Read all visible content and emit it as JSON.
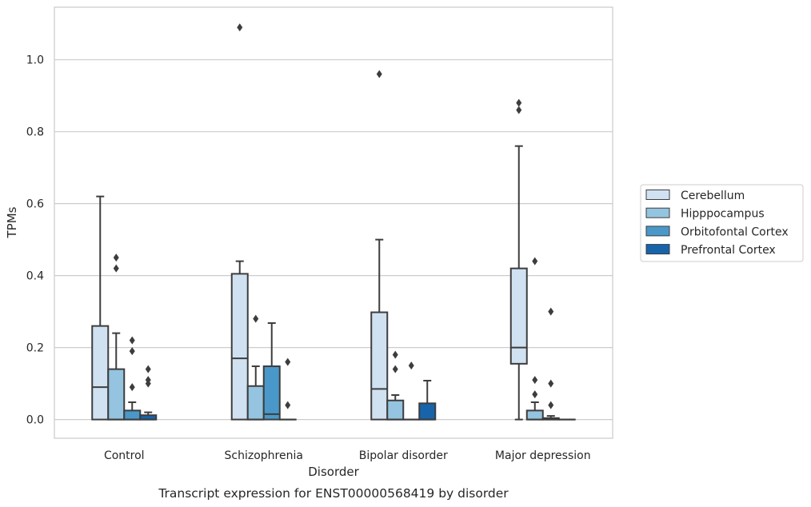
{
  "chart_data": {
    "type": "boxplot",
    "title": "",
    "caption": "Transcript expression for ENST00000568419 by disorder",
    "xlabel": "Disorder",
    "ylabel": "TPMs",
    "ylim": [
      -0.052,
      1.146
    ],
    "yticks": [
      0.0,
      0.2,
      0.4,
      0.6,
      0.8,
      1.0
    ],
    "ytick_labels": [
      "0.0",
      "0.2",
      "0.4",
      "0.6",
      "0.8",
      "1.0"
    ],
    "grid": "horizontal",
    "legend_position": "right",
    "categories": [
      "Control",
      "Schizophrenia",
      "Bipolar disorder",
      "Major depression"
    ],
    "series": [
      {
        "name": "Cerebellum",
        "color": "#d0e1f2",
        "boxes": [
          {
            "q1": 0.0,
            "median": 0.09,
            "q3": 0.26,
            "whisker_low": 0.0,
            "whisker_high": 0.62,
            "outliers": []
          },
          {
            "q1": 0.0,
            "median": 0.17,
            "q3": 0.405,
            "whisker_low": 0.0,
            "whisker_high": 0.44,
            "outliers": [
              1.09
            ]
          },
          {
            "q1": 0.0,
            "median": 0.085,
            "q3": 0.298,
            "whisker_low": 0.0,
            "whisker_high": 0.5,
            "outliers": [
              0.96
            ]
          },
          {
            "q1": 0.155,
            "median": 0.2,
            "q3": 0.42,
            "whisker_low": 0.0,
            "whisker_high": 0.76,
            "outliers": [
              0.86,
              0.88
            ]
          }
        ]
      },
      {
        "name": "Hipppocampus",
        "color": "#94c4df",
        "boxes": [
          {
            "q1": 0.0,
            "median": 0.0,
            "q3": 0.14,
            "whisker_low": 0.0,
            "whisker_high": 0.24,
            "outliers": [
              0.42,
              0.45
            ]
          },
          {
            "q1": 0.0,
            "median": 0.0,
            "q3": 0.093,
            "whisker_low": 0.0,
            "whisker_high": 0.148,
            "outliers": [
              0.28
            ]
          },
          {
            "q1": 0.0,
            "median": 0.0,
            "q3": 0.053,
            "whisker_low": 0.0,
            "whisker_high": 0.068,
            "outliers": [
              0.14,
              0.18
            ]
          },
          {
            "q1": 0.0,
            "median": 0.0,
            "q3": 0.025,
            "whisker_low": 0.0,
            "whisker_high": 0.048,
            "outliers": [
              0.07,
              0.11,
              0.44
            ]
          }
        ]
      },
      {
        "name": "Orbitofontal Cortex",
        "color": "#4a98c9",
        "boxes": [
          {
            "q1": 0.0,
            "median": 0.0,
            "q3": 0.025,
            "whisker_low": 0.0,
            "whisker_high": 0.048,
            "outliers": [
              0.09,
              0.19,
              0.22
            ]
          },
          {
            "q1": 0.0,
            "median": 0.015,
            "q3": 0.148,
            "whisker_low": 0.0,
            "whisker_high": 0.268,
            "outliers": []
          },
          {
            "q1": 0.0,
            "median": 0.0,
            "q3": 0.0,
            "whisker_low": 0.0,
            "whisker_high": 0.0,
            "outliers": [
              0.15
            ]
          },
          {
            "q1": 0.0,
            "median": 0.0,
            "q3": 0.004,
            "whisker_low": 0.0,
            "whisker_high": 0.01,
            "outliers": [
              0.04,
              0.1,
              0.3
            ]
          }
        ]
      },
      {
        "name": "Prefrontal Cortex",
        "color": "#1764ab",
        "boxes": [
          {
            "q1": 0.0,
            "median": 0.0,
            "q3": 0.012,
            "whisker_low": 0.0,
            "whisker_high": 0.02,
            "outliers": [
              0.1,
              0.11,
              0.14
            ]
          },
          {
            "q1": 0.0,
            "median": 0.0,
            "q3": 0.0,
            "whisker_low": 0.0,
            "whisker_high": 0.0,
            "outliers": [
              0.04,
              0.16
            ]
          },
          {
            "q1": 0.0,
            "median": 0.0,
            "q3": 0.045,
            "whisker_low": 0.0,
            "whisker_high": 0.108,
            "outliers": []
          },
          {
            "q1": 0.0,
            "median": 0.0,
            "q3": 0.0,
            "whisker_low": 0.0,
            "whisker_high": 0.0,
            "outliers": []
          }
        ]
      }
    ]
  }
}
